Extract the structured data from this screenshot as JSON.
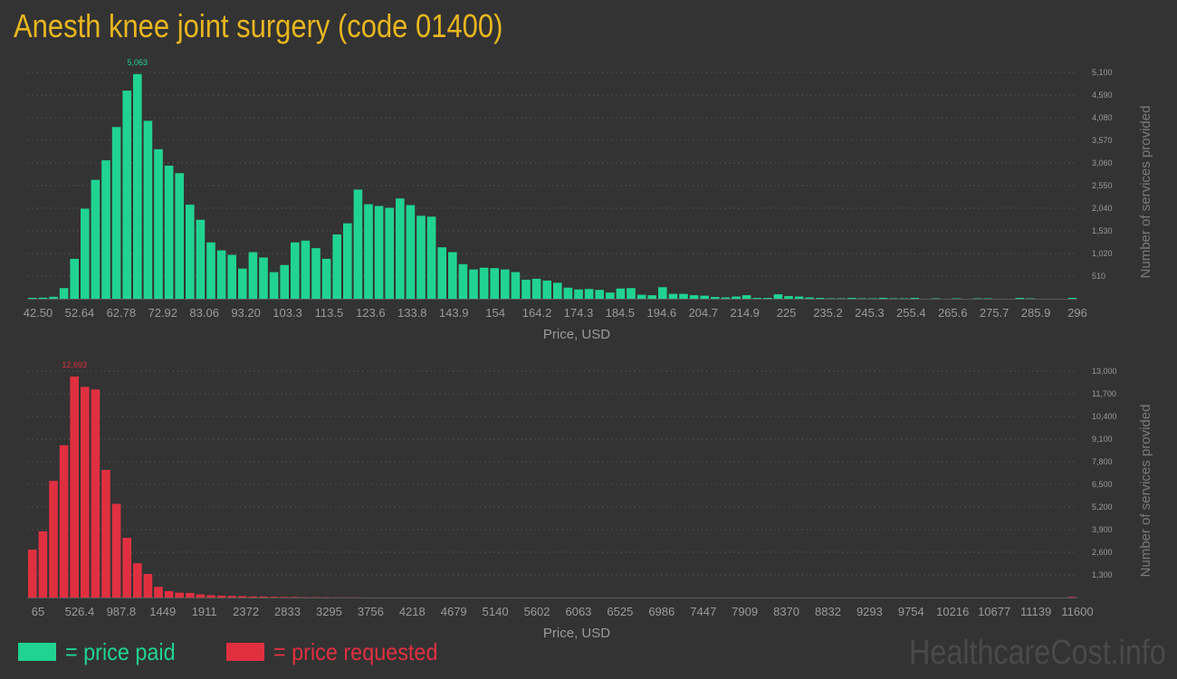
{
  "page": {
    "title": "Anesth knee joint surgery (code 01400)",
    "watermark": "HealthcareCost.info"
  },
  "legend": {
    "paid": {
      "label": "= price paid",
      "color": "#21d392"
    },
    "requested": {
      "label": "= price requested",
      "color": "#e03040"
    }
  },
  "colors": {
    "background": "#333333",
    "title": "#e8b620",
    "axis_text": "#9a9a9a",
    "grid": "#4c4c4c"
  },
  "chart_data": [
    {
      "type": "bar",
      "name": "price paid",
      "color": "#21d392",
      "xlabel": "Price, USD",
      "ylabel": "Number of services provided",
      "x_tick_labels": [
        "42.50",
        "52.64",
        "62.78",
        "72.92",
        "83.06",
        "93.20",
        "103.3",
        "113.5",
        "123.6",
        "133.8",
        "143.9",
        "154",
        "164.2",
        "174.3",
        "184.5",
        "194.6",
        "204.7",
        "214.9",
        "225",
        "235.2",
        "245.3",
        "255.4",
        "265.6",
        "275.7",
        "285.9",
        "296"
      ],
      "y_ticks": [
        510,
        1020,
        1530,
        2040,
        2550,
        3060,
        3570,
        4080,
        4590,
        5100
      ],
      "y_tick_labels": [
        "510",
        "1,020",
        "1,530",
        "2,040",
        "2,550",
        "3,060",
        "3,570",
        "4,080",
        "4,590",
        "5,100"
      ],
      "ylim": [
        0,
        5100
      ],
      "x_range": [
        42.5,
        296
      ],
      "peak_label": "5,063",
      "values": [
        20,
        25,
        45,
        240,
        900,
        2030,
        2680,
        3120,
        3870,
        4690,
        5063,
        4010,
        3370,
        3000,
        2830,
        2120,
        1780,
        1270,
        1090,
        990,
        680,
        1050,
        930,
        600,
        760,
        1270,
        1310,
        1140,
        900,
        1450,
        1700,
        2460,
        2130,
        2090,
        2050,
        2260,
        2110,
        1870,
        1850,
        1160,
        1050,
        780,
        660,
        700,
        690,
        660,
        600,
        430,
        450,
        410,
        360,
        250,
        210,
        220,
        200,
        140,
        230,
        240,
        90,
        80,
        260,
        110,
        110,
        80,
        70,
        40,
        30,
        50,
        80,
        20,
        20,
        100,
        60,
        50,
        30,
        20,
        10,
        10,
        20,
        10,
        10,
        20,
        10,
        10,
        20,
        0,
        10,
        0,
        10,
        0,
        10,
        10,
        0,
        0,
        20,
        10,
        0,
        0,
        0,
        20
      ]
    },
    {
      "type": "bar",
      "name": "price requested",
      "color": "#e03040",
      "xlabel": "Price, USD",
      "ylabel": "Number of services provided",
      "x_tick_labels": [
        "65",
        "526.4",
        "987.8",
        "1449",
        "1911",
        "2372",
        "2833",
        "3295",
        "3756",
        "4218",
        "4679",
        "5140",
        "5602",
        "6063",
        "6525",
        "6986",
        "7447",
        "7909",
        "8370",
        "8832",
        "9293",
        "9754",
        "10216",
        "10677",
        "11139",
        "11600"
      ],
      "y_ticks": [
        1300,
        2600,
        3900,
        5200,
        6500,
        7800,
        9100,
        10400,
        11700,
        13000
      ],
      "y_tick_labels": [
        "1,300",
        "2,600",
        "3,900",
        "5,200",
        "6,500",
        "7,800",
        "9,100",
        "10,400",
        "11,700",
        "13,000"
      ],
      "ylim": [
        0,
        13000
      ],
      "x_range": [
        65,
        11600
      ],
      "peak_label": "12,693",
      "values": [
        2750,
        3800,
        6700,
        8750,
        12693,
        12100,
        11950,
        7330,
        5380,
        3430,
        1970,
        1350,
        610,
        370,
        280,
        260,
        180,
        130,
        110,
        90,
        80,
        60,
        50,
        40,
        30,
        30,
        20,
        20,
        20,
        10,
        10,
        10,
        0,
        0,
        0,
        0,
        0,
        0,
        0,
        0,
        0,
        0,
        0,
        0,
        0,
        0,
        0,
        0,
        0,
        0,
        0,
        0,
        0,
        0,
        0,
        0,
        0,
        0,
        0,
        0,
        0,
        0,
        0,
        0,
        0,
        0,
        0,
        0,
        0,
        0,
        0,
        0,
        0,
        0,
        0,
        0,
        0,
        0,
        0,
        0,
        0,
        0,
        0,
        0,
        0,
        0,
        0,
        0,
        0,
        0,
        0,
        0,
        0,
        0,
        0,
        0,
        0,
        0,
        0,
        30
      ]
    }
  ]
}
